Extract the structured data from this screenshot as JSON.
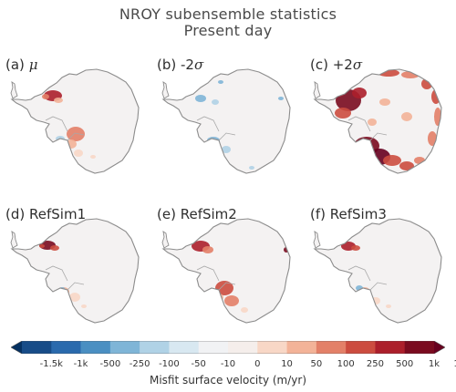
{
  "title_line1": "NROY subensemble statistics",
  "title_line2": "Present day",
  "panels": [
    {
      "tag": "(a)",
      "sym": "μ",
      "name": ""
    },
    {
      "tag": "(b)",
      "sym": "σ",
      "name": "-2"
    },
    {
      "tag": "(c)",
      "sym": "σ",
      "name": "+2"
    },
    {
      "tag": "(d)",
      "sym": "",
      "name": "RefSim1"
    },
    {
      "tag": "(e)",
      "sym": "",
      "name": "RefSim2"
    },
    {
      "tag": "(f)",
      "sym": "",
      "name": "RefSim3"
    }
  ],
  "chart_data": {
    "type": "heatmap",
    "title": "NROY subensemble statistics Present day",
    "colorbar": {
      "label": "Misfit surface velocity (m/yr)",
      "tick_labels": [
        "-1.5k",
        "-1k",
        "-500",
        "-250",
        "-100",
        "-50",
        "-10",
        "0",
        "10",
        "50",
        "100",
        "250",
        "500",
        "1k",
        "1.5k"
      ],
      "colors": [
        "#053061",
        "#174c88",
        "#2a6aad",
        "#4a8fc2",
        "#7fb5d7",
        "#b0d2e6",
        "#d8e8f1",
        "#f1f2f4",
        "#f5eeeb",
        "#f8d7c6",
        "#f3b398",
        "#e38068",
        "#cc4c3f",
        "#ac1f2b",
        "#7a0b1f",
        "#67001f"
      ],
      "extend": "both"
    },
    "panels": [
      "(a) μ",
      "(b) -2σ",
      "(c) +2σ",
      "(d) RefSim1",
      "(e) RefSim2",
      "(f) RefSim3"
    ]
  }
}
